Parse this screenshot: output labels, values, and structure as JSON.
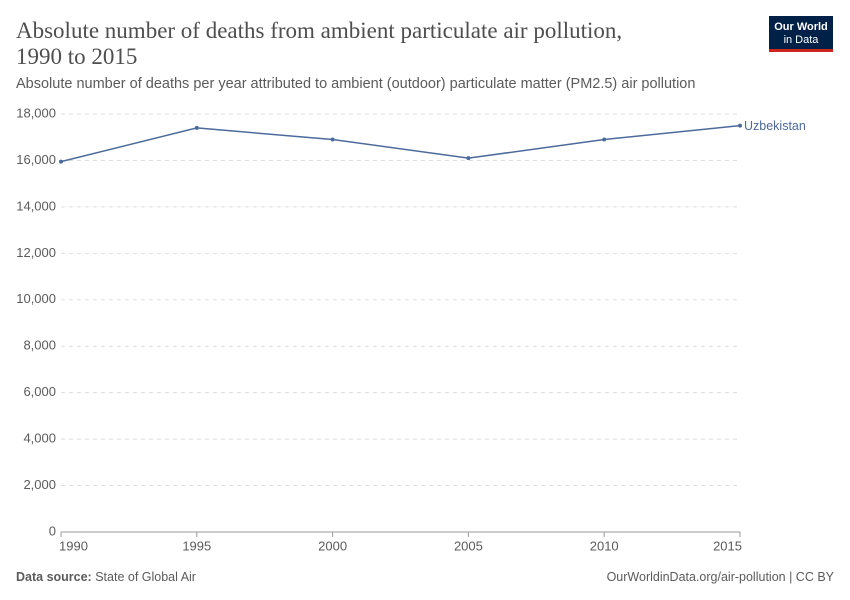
{
  "chart_data": {
    "type": "line",
    "title": [
      "Absolute number of deaths from ambient particulate air pollution,",
      "1990 to 2015"
    ],
    "subtitle": "Absolute number of deaths per year attributed to ambient (outdoor) particulate matter (PM2.5) air pollution",
    "logo": [
      "Our World",
      "in Data"
    ],
    "source_label": "Data source:",
    "source": "State of Global Air",
    "url": "OurWorldinData.org/air-pollution | CC BY",
    "x": [
      1990,
      1995,
      2000,
      2005,
      2010,
      2015
    ],
    "series": [
      {
        "name": "Uzbekistan",
        "color": "#4c6a9c",
        "values": [
          15950,
          17400,
          16900,
          16100,
          16900,
          17500
        ]
      }
    ],
    "xlim": [
      1990,
      2015
    ],
    "xticks": [
      1990,
      1995,
      2000,
      2005,
      2010,
      2015
    ],
    "ylim": [
      0,
      18000
    ],
    "yticks": [
      0,
      {
        "value": 2000,
        "label": "2,000"
      },
      {
        "value": 4000,
        "label": "4,000"
      },
      {
        "value": 6000,
        "label": "6,000"
      },
      {
        "value": 8000,
        "label": "8,000"
      },
      {
        "value": 10000,
        "label": "10,000"
      },
      {
        "value": 12000,
        "label": "12,000"
      },
      {
        "value": 14000,
        "label": "14,000"
      },
      {
        "value": 16000,
        "label": "16,000"
      },
      {
        "value": 18000,
        "label": "18,000"
      }
    ],
    "grid": true
  }
}
